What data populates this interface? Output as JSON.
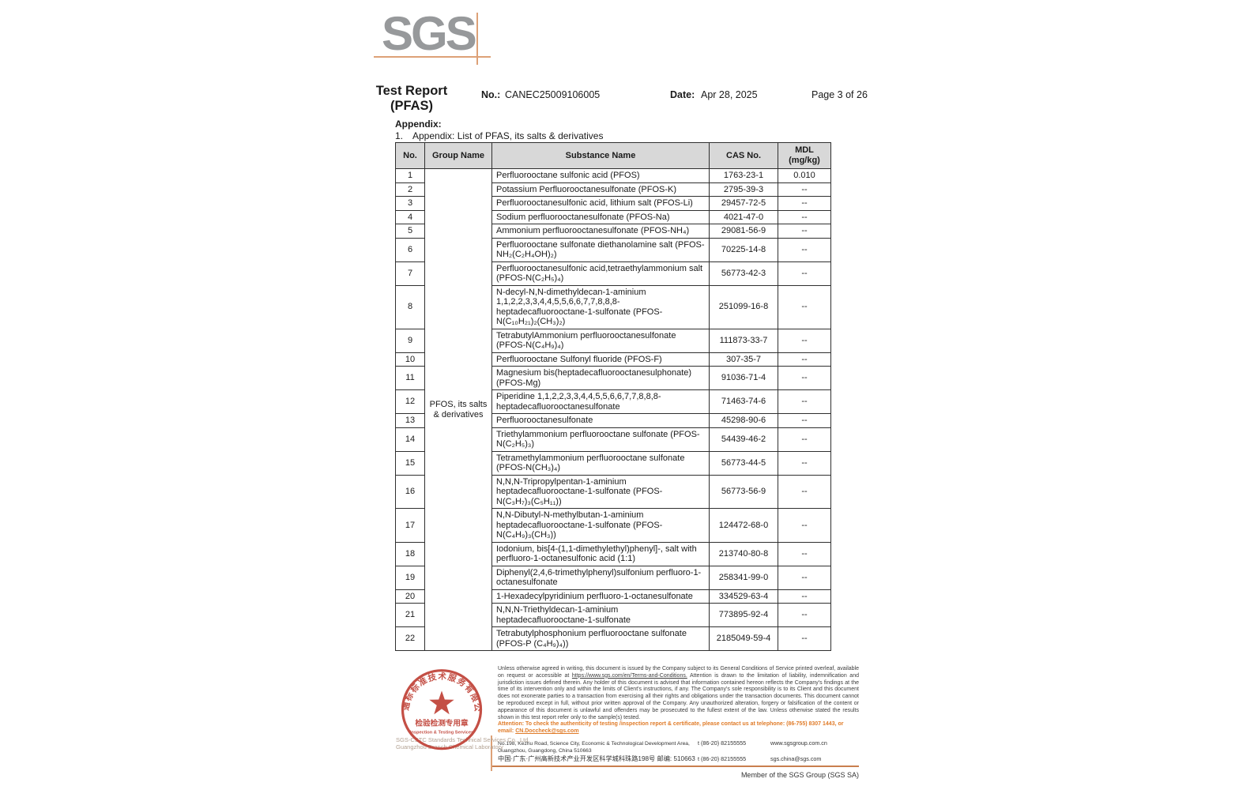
{
  "logo": {
    "text": "SGS"
  },
  "header": {
    "title_line1": "Test Report",
    "title_line2": "(PFAS)",
    "no_label": "No.:",
    "no_value": "CANEC25009106005",
    "date_label": "Date:",
    "date_value": "Apr 28, 2025",
    "page": "Page 3 of 26"
  },
  "appendix": {
    "heading": "Appendix:",
    "item_number": "1.",
    "item_text": "Appendix: List of PFAS, its salts & derivatives"
  },
  "table": {
    "headers": {
      "no": "No.",
      "group": "Group Name",
      "substance": "Substance Name",
      "cas": "CAS No.",
      "mdl_line1": "MDL",
      "mdl_line2": "(mg/kg)"
    },
    "group_name": "PFOS, its salts & derivatives",
    "rows": [
      {
        "no": "1",
        "substance": "Perfluorooctane sulfonic acid (PFOS)",
        "cas": "1763-23-1",
        "mdl": "0.010"
      },
      {
        "no": "2",
        "substance": "Potassium Perfluorooctanesulfonate (PFOS-K)",
        "cas": "2795-39-3",
        "mdl": "--"
      },
      {
        "no": "3",
        "substance": "Perfluorooctanesulfonic acid, lithium salt (PFOS-Li)",
        "cas": "29457-72-5",
        "mdl": "--"
      },
      {
        "no": "4",
        "substance": "Sodium perfluorooctanesulfonate (PFOS-Na)",
        "cas": "4021-47-0",
        "mdl": "--"
      },
      {
        "no": "5",
        "substance": "Ammonium perfluorooctanesulfonate (PFOS-NH₄)",
        "cas": "29081-56-9",
        "mdl": "--"
      },
      {
        "no": "6",
        "substance": "Perfluorooctane sulfonate diethanolamine salt (PFOS-NH₂(C₂H₄OH)₂)",
        "cas": "70225-14-8",
        "mdl": "--"
      },
      {
        "no": "7",
        "substance": "Perfluorooctanesulfonic acid,tetraethylammonium salt (PFOS-N(C₂H₅)₄)",
        "cas": "56773-42-3",
        "mdl": "--"
      },
      {
        "no": "8",
        "substance": "N-decyl-N,N-dimethyldecan-1-aminium 1,1,2,2,3,3,4,4,5,5,6,6,7,7,8,8,8-heptadecafluorooctane-1-sulfonate (PFOS-N(C₁₀H₂₁)₂(CH₃)₂)",
        "cas": "251099-16-8",
        "mdl": "--"
      },
      {
        "no": "9",
        "substance": "TetrabutylAmmonium perfluorooctanesulfonate (PFOS-N(C₄H₉)₄)",
        "cas": "111873-33-7",
        "mdl": "--"
      },
      {
        "no": "10",
        "substance": "Perfluorooctane Sulfonyl fluoride (PFOS-F)",
        "cas": "307-35-7",
        "mdl": "--"
      },
      {
        "no": "11",
        "substance": "Magnesium bis(heptadecafluorooctanesulphonate) (PFOS-Mg)",
        "cas": "91036-71-4",
        "mdl": "--"
      },
      {
        "no": "12",
        "substance": "Piperidine 1,1,2,2,3,3,4,4,5,5,6,6,7,7,8,8,8-heptadecafluorooctanesulfonate",
        "cas": "71463-74-6",
        "mdl": "--"
      },
      {
        "no": "13",
        "substance": "Perfluorooctanesulfonate",
        "cas": "45298-90-6",
        "mdl": "--"
      },
      {
        "no": "14",
        "substance": "Triethylammonium perfluorooctane sulfonate (PFOS-N(C₂H₅)₃)",
        "cas": "54439-46-2",
        "mdl": "--"
      },
      {
        "no": "15",
        "substance": "Tetramethylammonium perfluorooctane sulfonate (PFOS-N(CH₃)₄)",
        "cas": "56773-44-5",
        "mdl": "--"
      },
      {
        "no": "16",
        "substance": "N,N,N-Tripropylpentan-1-aminium heptadecafluorooctane-1-sulfonate (PFOS-N(C₃H₇)₃(C₅H₁₁))",
        "cas": "56773-56-9",
        "mdl": "--"
      },
      {
        "no": "17",
        "substance": "N,N-Dibutyl-N-methylbutan-1-aminium heptadecafluorooctane-1-sulfonate (PFOS-N(C₄H₉)₃(CH₃))",
        "cas": "124472-68-0",
        "mdl": "--"
      },
      {
        "no": "18",
        "substance": "Iodonium, bis[4-(1,1-dimethylethyl)phenyl]-, salt with perfluoro-1-octanesulfonic acid (1:1)",
        "cas": "213740-80-8",
        "mdl": "--"
      },
      {
        "no": "19",
        "substance": "Diphenyl(2,4,6-trimethylphenyl)sulfonium perfluoro-1-octanesulfonate",
        "cas": "258341-99-0",
        "mdl": "--"
      },
      {
        "no": "20",
        "substance": "1-Hexadecylpyridinium perfluoro-1-octanesulfonate",
        "cas": "334529-63-4",
        "mdl": "--"
      },
      {
        "no": "21",
        "substance": "N,N,N-Triethyldecan-1-aminium heptadecafluorooctane-1-sulfonate",
        "cas": "773895-92-4",
        "mdl": "--"
      },
      {
        "no": "22",
        "substance": "Tetrabutylphosphonium perfluorooctane sulfonate (PFOS-P (C₄H₉)₄))",
        "cas": "2185049-59-4",
        "mdl": "--"
      }
    ]
  },
  "footer": {
    "stamp": {
      "ring_text": "通标标准技术服务有限公司广州分公司",
      "line1": "检验检测专用章",
      "line2": "Inspection & Testing Services"
    },
    "company_line1": "SGS-CSTC Standards Technical Services Co., Ltd.",
    "company_line2": "Guangzhou Branch Chemical Laboratory",
    "disclaimer_pre": "Unless otherwise agreed in writing, this document is issued by the Company subject to its General Conditions of Service printed overleaf, available on request or accessible at ",
    "disclaimer_link": "https://www.sgs.com/en/Terms-and-Conditions.",
    "disclaimer_post": " Attention is drawn to the limitation of liability, indemnification and jurisdiction issues defined therein. Any holder of this document is advised that information contained hereon reflects the Company's findings at the time of its intervention only and within the limits of Client's instructions, if any. The Company's sole responsibility is to its Client and this document does not exonerate parties to a transaction from exercising all their rights and obligations under the transaction documents. This document cannot be reproduced except in full, without prior written approval of the Company. Any unauthorized alteration, forgery or falsification of the content or appearance of this document is unlawful and offenders may be prosecuted to the fullest extent of the law. Unless otherwise stated the results shown in this test report refer only to the sample(s) tested.",
    "attention_text": "Attention: To check the authenticity of testing /inspection report & certificate, please contact us at telephone: (86-755) 8307 1443, or email: ",
    "attention_email": "CN.Doccheck@sgs.com",
    "address_en": "No.198, Kezhu Road, Science City, Economic & Technological Development Area, Guangzhou, Guangdong, China 510663",
    "address_cn": "中国·广东·广州高新技术产业开发区科学城科珠路198号  邮编: 510663",
    "phone1": "t (86-20) 82155555",
    "phone2": "t (86-20) 82155555",
    "web": "www.sgsgroup.com.cn",
    "email": "sgs.china@sgs.com",
    "member": "Member of the SGS Group (SGS SA)"
  },
  "colors": {
    "logo_gray": "#97999b",
    "accent_orange": "#dda177",
    "attention_orange": "#e07b28",
    "stamp_red": "#bf4136",
    "header_bg": "#d8d8d8"
  }
}
